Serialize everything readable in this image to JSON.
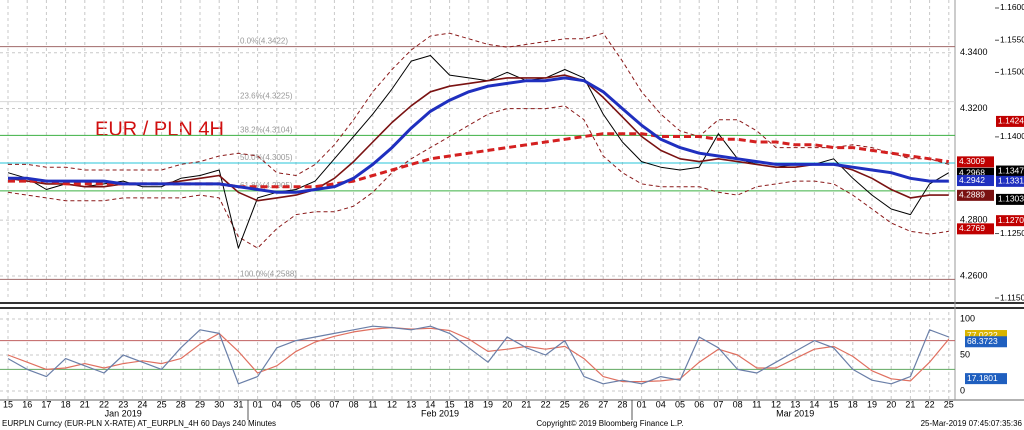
{
  "chart_data": [
    {
      "type": "line",
      "title": "EUR / PLN 4H",
      "categories": [
        "15",
        "16",
        "17",
        "18",
        "21",
        "22",
        "23",
        "24",
        "25",
        "28",
        "29",
        "30",
        "31",
        "01",
        "04",
        "05",
        "06",
        "07",
        "08",
        "11",
        "12",
        "13",
        "14",
        "15",
        "18",
        "19",
        "20",
        "21",
        "22",
        "25",
        "26",
        "27",
        "28",
        "01",
        "04",
        "05",
        "06",
        "07",
        "08",
        "11",
        "12",
        "13",
        "14",
        "15",
        "18",
        "19",
        "20",
        "21",
        "22",
        "25"
      ],
      "months": [
        "Jan 2019",
        "Feb 2019",
        "Mar 2019"
      ],
      "ylim": [
        4.2514,
        4.3589
      ],
      "yticks": [
        {
          "value": 4.26,
          "label": "4.2600"
        },
        {
          "value": 4.28,
          "label": "4.2800"
        },
        {
          "value": 4.32,
          "label": "4.3200"
        },
        {
          "value": 4.34,
          "label": "4.3400"
        }
      ],
      "y2lim": [
        1.11469,
        1.16124
      ],
      "y2ticks": [
        {
          "value": 1.16,
          "label": "1.1600"
        },
        {
          "value": 1.155,
          "label": "1.1550"
        },
        {
          "value": 1.15,
          "label": "1.1500"
        },
        {
          "value": 1.14,
          "label": "1.1400"
        },
        {
          "value": 1.125,
          "label": "1.1250"
        },
        {
          "value": 1.115,
          "label": "1.1150"
        }
      ],
      "grid": true,
      "levels": [
        {
          "label": "0.0%(4.3422)",
          "value": 4.3422,
          "color": "#a06a6a"
        },
        {
          "label": "23.6%(4.3225)",
          "value": 4.3225,
          "color": "#d8d8d8"
        },
        {
          "label": "38.2%(4.3104)",
          "value": 4.3104,
          "color": "#3cb043"
        },
        {
          "label": "50.0%(4.3005)",
          "value": 4.3005,
          "color": "#27c4d8"
        },
        {
          "label": "61.8%(4.2905)",
          "value": 4.2905,
          "color": "#3cb043"
        },
        {
          "label": "100.0%(4.2588)",
          "value": 4.2588,
          "color": "#a06a6a"
        }
      ],
      "series": [
        {
          "color": "#8b1a1a",
          "width": 1,
          "dash": true,
          "values": [
            4.3,
            4.3,
            4.299,
            4.299,
            4.298,
            4.298,
            4.298,
            4.298,
            4.298,
            4.3,
            4.301,
            4.303,
            4.304,
            4.303,
            4.297,
            4.296,
            4.3,
            4.307,
            4.316,
            4.326,
            4.334,
            4.341,
            4.346,
            4.347,
            4.345,
            4.343,
            4.342,
            4.343,
            4.344,
            4.345,
            4.345,
            4.347,
            4.337,
            4.326,
            4.318,
            4.312,
            4.31,
            4.316,
            4.316,
            4.312,
            4.306,
            4.306,
            4.306,
            4.306,
            4.307,
            4.306,
            4.304,
            4.302,
            4.302,
            4.3
          ]
        },
        {
          "color": "#8b1a1a",
          "width": 1,
          "dash": true,
          "values": [
            4.29,
            4.289,
            4.288,
            4.287,
            4.287,
            4.287,
            4.288,
            4.288,
            4.288,
            4.288,
            4.289,
            4.288,
            4.274,
            4.27,
            4.277,
            4.282,
            4.283,
            4.283,
            4.285,
            4.29,
            4.297,
            4.302,
            4.306,
            4.31,
            4.314,
            4.318,
            4.32,
            4.32,
            4.32,
            4.321,
            4.316,
            4.303,
            4.297,
            4.293,
            4.292,
            4.292,
            4.292,
            4.29,
            4.289,
            4.292,
            4.293,
            4.294,
            4.294,
            4.293,
            4.289,
            4.284,
            4.279,
            4.276,
            4.275,
            4.276
          ]
        },
        {
          "color": "#000000",
          "width": 1,
          "values": [
            4.297,
            4.295,
            4.291,
            4.293,
            4.292,
            4.293,
            4.294,
            4.292,
            4.292,
            4.295,
            4.296,
            4.298,
            4.27,
            4.288,
            4.29,
            4.291,
            4.294,
            4.302,
            4.31,
            4.318,
            4.327,
            4.337,
            4.339,
            4.332,
            4.331,
            4.33,
            4.333,
            4.33,
            4.331,
            4.334,
            4.331,
            4.318,
            4.308,
            4.301,
            4.299,
            4.298,
            4.299,
            4.311,
            4.302,
            4.3,
            4.299,
            4.3,
            4.3,
            4.302,
            4.295,
            4.289,
            4.284,
            4.282,
            4.293,
            4.297
          ]
        },
        {
          "color": "#7a1212",
          "width": 1.6,
          "values": [
            4.295,
            4.294,
            4.293,
            4.293,
            4.292,
            4.292,
            4.293,
            4.293,
            4.293,
            4.294,
            4.295,
            4.296,
            4.29,
            4.287,
            4.288,
            4.289,
            4.291,
            4.295,
            4.301,
            4.308,
            4.315,
            4.321,
            4.326,
            4.328,
            4.329,
            4.33,
            4.331,
            4.331,
            4.331,
            4.332,
            4.33,
            4.324,
            4.317,
            4.31,
            4.305,
            4.302,
            4.301,
            4.302,
            4.301,
            4.3,
            4.299,
            4.299,
            4.3,
            4.3,
            4.298,
            4.295,
            4.291,
            4.288,
            4.289,
            4.289
          ]
        },
        {
          "color": "#d42020",
          "width": 3,
          "dash": true,
          "values": [
            4.294,
            4.294,
            4.294,
            4.293,
            4.293,
            4.293,
            4.293,
            4.293,
            4.293,
            4.293,
            4.293,
            4.293,
            4.292,
            4.292,
            4.292,
            4.292,
            4.292,
            4.293,
            4.294,
            4.296,
            4.298,
            4.3,
            4.302,
            4.303,
            4.304,
            4.305,
            4.306,
            4.307,
            4.308,
            4.309,
            4.31,
            4.311,
            4.311,
            4.311,
            4.31,
            4.31,
            4.31,
            4.309,
            4.309,
            4.308,
            4.308,
            4.307,
            4.307,
            4.306,
            4.306,
            4.305,
            4.304,
            4.303,
            4.302,
            4.301
          ]
        },
        {
          "color": "#1f2fbf",
          "width": 3,
          "values": [
            4.295,
            4.295,
            4.294,
            4.294,
            4.294,
            4.294,
            4.293,
            4.293,
            4.293,
            4.293,
            4.293,
            4.293,
            4.292,
            4.291,
            4.29,
            4.29,
            4.291,
            4.292,
            4.295,
            4.3,
            4.306,
            4.313,
            4.319,
            4.323,
            4.326,
            4.328,
            4.329,
            4.33,
            4.33,
            4.331,
            4.33,
            4.326,
            4.32,
            4.314,
            4.309,
            4.306,
            4.304,
            4.303,
            4.302,
            4.301,
            4.3,
            4.3,
            4.3,
            4.3,
            4.299,
            4.298,
            4.297,
            4.295,
            4.294,
            4.294
          ]
        }
      ],
      "tags": [
        {
          "value": 4.3009,
          "color": "#c00000"
        },
        {
          "value": 4.2968,
          "color": "#000000"
        },
        {
          "value": 4.2942,
          "color": "#1f2fbf"
        },
        {
          "value": 4.2889,
          "color": "#7a1212"
        },
        {
          "value": 4.2769,
          "color": "#c00000"
        }
      ],
      "y2tags": [
        {
          "value": 1.1424,
          "color": "#c00000"
        },
        {
          "value": 1.1347,
          "color": "#000000"
        },
        {
          "value": 1.1331,
          "color": "#1f2fbf"
        },
        {
          "value": 1.1303,
          "color": "#000000"
        },
        {
          "value": 1.127,
          "label": "1.1270",
          "color": "#c00000"
        }
      ]
    },
    {
      "type": "line",
      "ylim": [
        -12.5,
        109.7
      ],
      "yticks": [
        0,
        50,
        100
      ],
      "levels": [
        {
          "value": 70,
          "color": "#c06060"
        },
        {
          "value": 30,
          "color": "#60a860"
        }
      ],
      "series": [
        {
          "color": "#e07060",
          "width": 1.2,
          "values": [
            50,
            40,
            30,
            32,
            38,
            32,
            38,
            42,
            38,
            45,
            65,
            80,
            55,
            25,
            35,
            55,
            68,
            76,
            82,
            86,
            88,
            86,
            87,
            84,
            72,
            55,
            58,
            62,
            58,
            62,
            45,
            20,
            13,
            13,
            14,
            17,
            40,
            58,
            50,
            32,
            32,
            45,
            58,
            62,
            48,
            28,
            17,
            14,
            40,
            72
          ]
        },
        {
          "color": "#6a7fa8",
          "width": 1.2,
          "values": [
            45,
            30,
            20,
            45,
            35,
            25,
            50,
            40,
            30,
            60,
            85,
            80,
            10,
            20,
            60,
            70,
            75,
            80,
            85,
            90,
            88,
            85,
            90,
            80,
            60,
            40,
            75,
            60,
            50,
            70,
            20,
            10,
            15,
            10,
            20,
            15,
            75,
            60,
            30,
            25,
            40,
            55,
            70,
            60,
            30,
            15,
            10,
            20,
            85,
            75
          ]
        }
      ],
      "tags": [
        {
          "value": 77.0222,
          "color": "#d8b400"
        },
        {
          "value": 68.3723,
          "color": "#1f5fbf"
        },
        {
          "value": 17.1801,
          "color": "#1f5fbf"
        }
      ]
    }
  ],
  "footer": {
    "left": "EURPLN Curncy (EUR-PLN X-RATE) AT_EURPLN_4H 60 Days 240 Minutes",
    "center": "Copyright© 2019 Bloomberg Finance L.P.",
    "right": "25-Mar-2019 07:45:07:35:36"
  }
}
